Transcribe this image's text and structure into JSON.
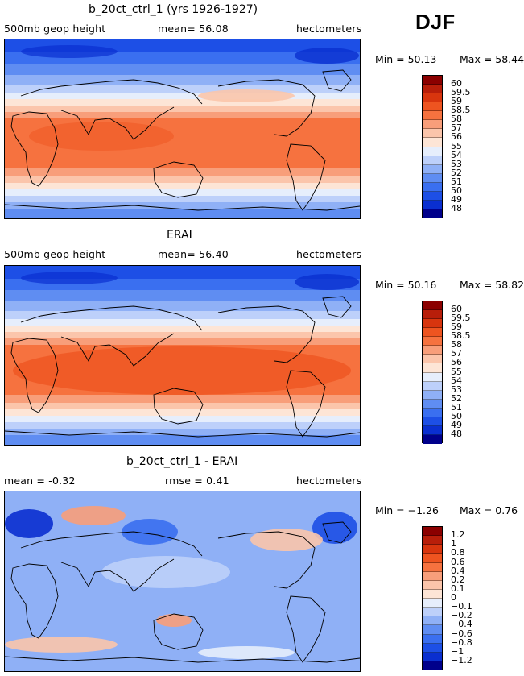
{
  "season": "DJF",
  "panels": [
    {
      "title": "b_20ct_ctrl_1 (yrs 1926-1927)",
      "left_text": "500mb geop height",
      "center_text": "mean=  56.08",
      "right_text": "hectometers",
      "min_text": "Min =  50.13",
      "max_text": "Max =  58.44",
      "kind": "abs",
      "colorbar": [
        "60",
        "59.5",
        "59",
        "58.5",
        "58",
        "57",
        "56",
        "55",
        "54",
        "53",
        "52",
        "51",
        "50",
        "49",
        "48"
      ]
    },
    {
      "title": "ERAI",
      "left_text": "500mb geop height",
      "center_text": "mean=  56.40",
      "right_text": "hectometers",
      "min_text": "Min =  50.16",
      "max_text": "Max =  58.82",
      "kind": "abs",
      "colorbar": [
        "60",
        "59.5",
        "59",
        "58.5",
        "58",
        "57",
        "56",
        "55",
        "54",
        "53",
        "52",
        "51",
        "50",
        "49",
        "48"
      ]
    },
    {
      "title": "b_20ct_ctrl_1 - ERAI",
      "left_text": "mean =   -0.32",
      "center_text": "rmse =    0.41",
      "right_text": "hectometers",
      "min_text": "Min =  −1.26",
      "max_text": "Max =    0.76",
      "kind": "diff",
      "colorbar": [
        "1.2",
        "1",
        "0.8",
        "0.6",
        "0.4",
        "0.2",
        "0.1",
        "0",
        "−0.1",
        "−0.2",
        "−0.4",
        "−0.6",
        "−0.8",
        "−1",
        "−1.2"
      ]
    }
  ],
  "colors": {
    "scale": [
      "#8b0000",
      "#b81e0a",
      "#d8350e",
      "#ee5420",
      "#f6723f",
      "#f89e7a",
      "#fbc5ab",
      "#fde5d6",
      "#e6eefc",
      "#bdd0fa",
      "#8fb0f6",
      "#5f8df2",
      "#3a6ff0",
      "#1d4fe6",
      "#0a2fd0",
      "#00008b"
    ]
  }
}
